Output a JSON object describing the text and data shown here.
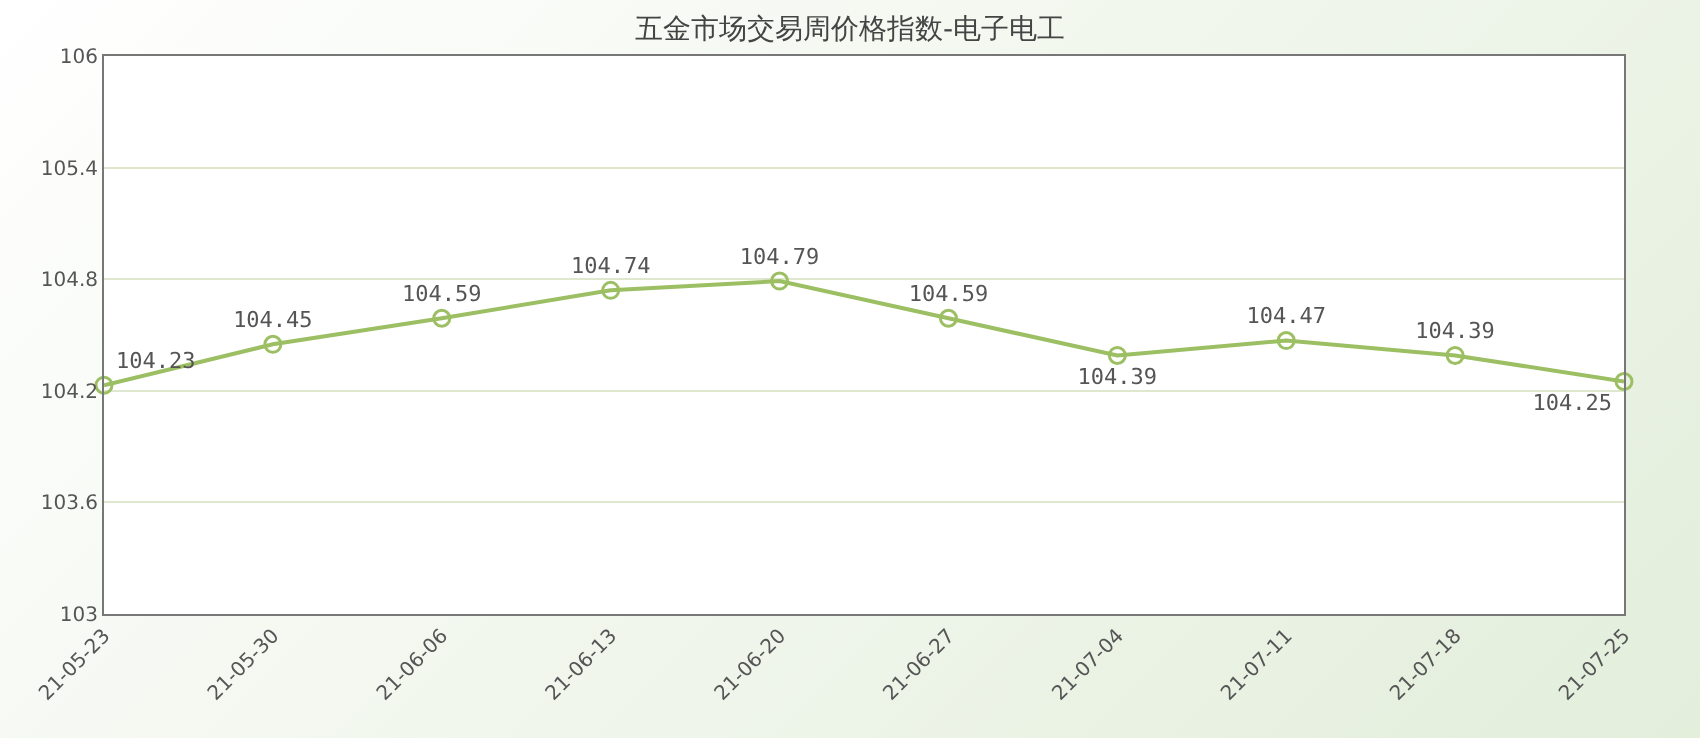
{
  "chart_data": {
    "type": "line",
    "title": "五金市场交易周价格指数-电子电工",
    "categories": [
      "21-05-23",
      "21-05-30",
      "21-06-06",
      "21-06-13",
      "21-06-20",
      "21-06-27",
      "21-07-04",
      "21-07-11",
      "21-07-18",
      "21-07-25"
    ],
    "series": [
      {
        "color": "#9cbf63",
        "values": [
          104.23,
          104.45,
          104.59,
          104.74,
          104.79,
          104.59,
          104.39,
          104.47,
          104.39,
          104.25
        ]
      }
    ],
    "ylim": [
      103,
      106
    ],
    "yticks": [
      103,
      103.6,
      104.2,
      104.8,
      105.4,
      106
    ],
    "grid": "y",
    "marker": "circle",
    "data_labels": true
  }
}
